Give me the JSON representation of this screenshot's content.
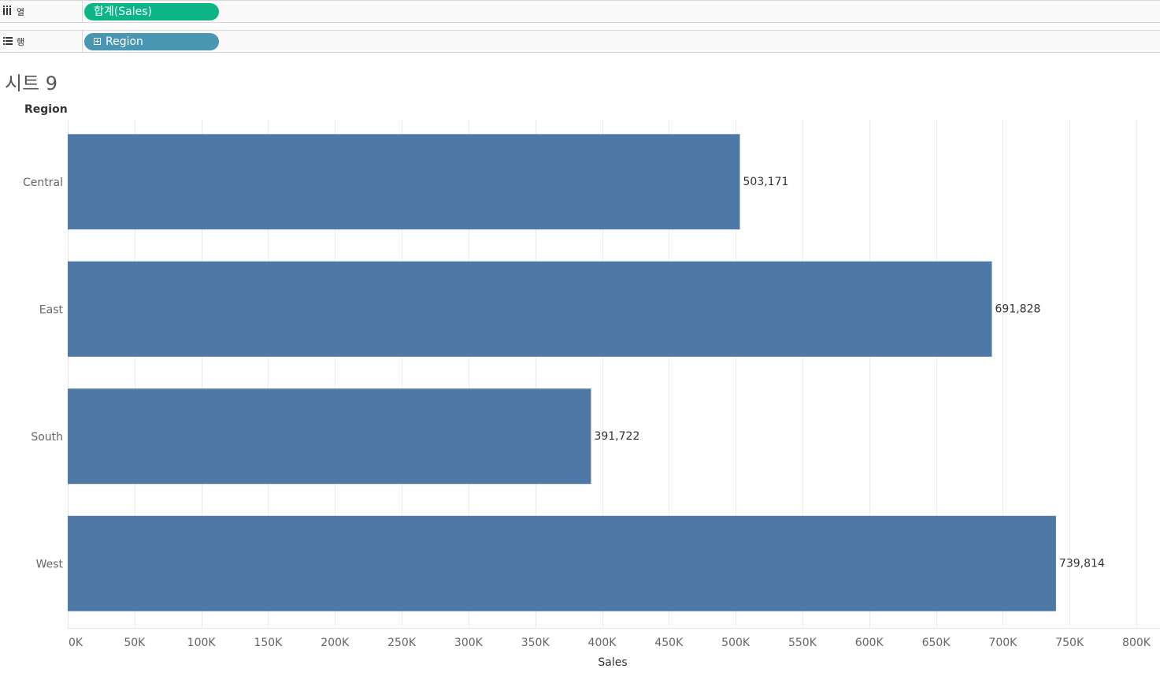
{
  "shelves": {
    "columns": {
      "label": "열",
      "pill": "합계(Sales)"
    },
    "rows": {
      "label": "행",
      "pill": "Region"
    }
  },
  "sheet": {
    "title": "시트 9"
  },
  "colors": {
    "bar": "#4e79a7",
    "pill_columns": "#0db487",
    "pill_rows": "#4996b2",
    "grid": "#ececec"
  },
  "chart_data": {
    "type": "bar",
    "orientation": "horizontal",
    "categories": [
      "Central",
      "East",
      "South",
      "West"
    ],
    "values": [
      503171,
      691828,
      391722,
      739814
    ],
    "data_labels": [
      "503,171",
      "691,828",
      "391,722",
      "739,814"
    ],
    "ylabel": "Region",
    "xlabel": "Sales",
    "xlim": [
      0,
      800000
    ],
    "xticks": [
      0,
      50000,
      100000,
      150000,
      200000,
      250000,
      300000,
      350000,
      400000,
      450000,
      500000,
      550000,
      600000,
      650000,
      700000,
      750000,
      800000
    ],
    "xtick_labels": [
      "0K",
      "50K",
      "100K",
      "150K",
      "200K",
      "250K",
      "300K",
      "350K",
      "400K",
      "450K",
      "500K",
      "550K",
      "600K",
      "650K",
      "700K",
      "750K",
      "800K"
    ],
    "grid": true
  }
}
